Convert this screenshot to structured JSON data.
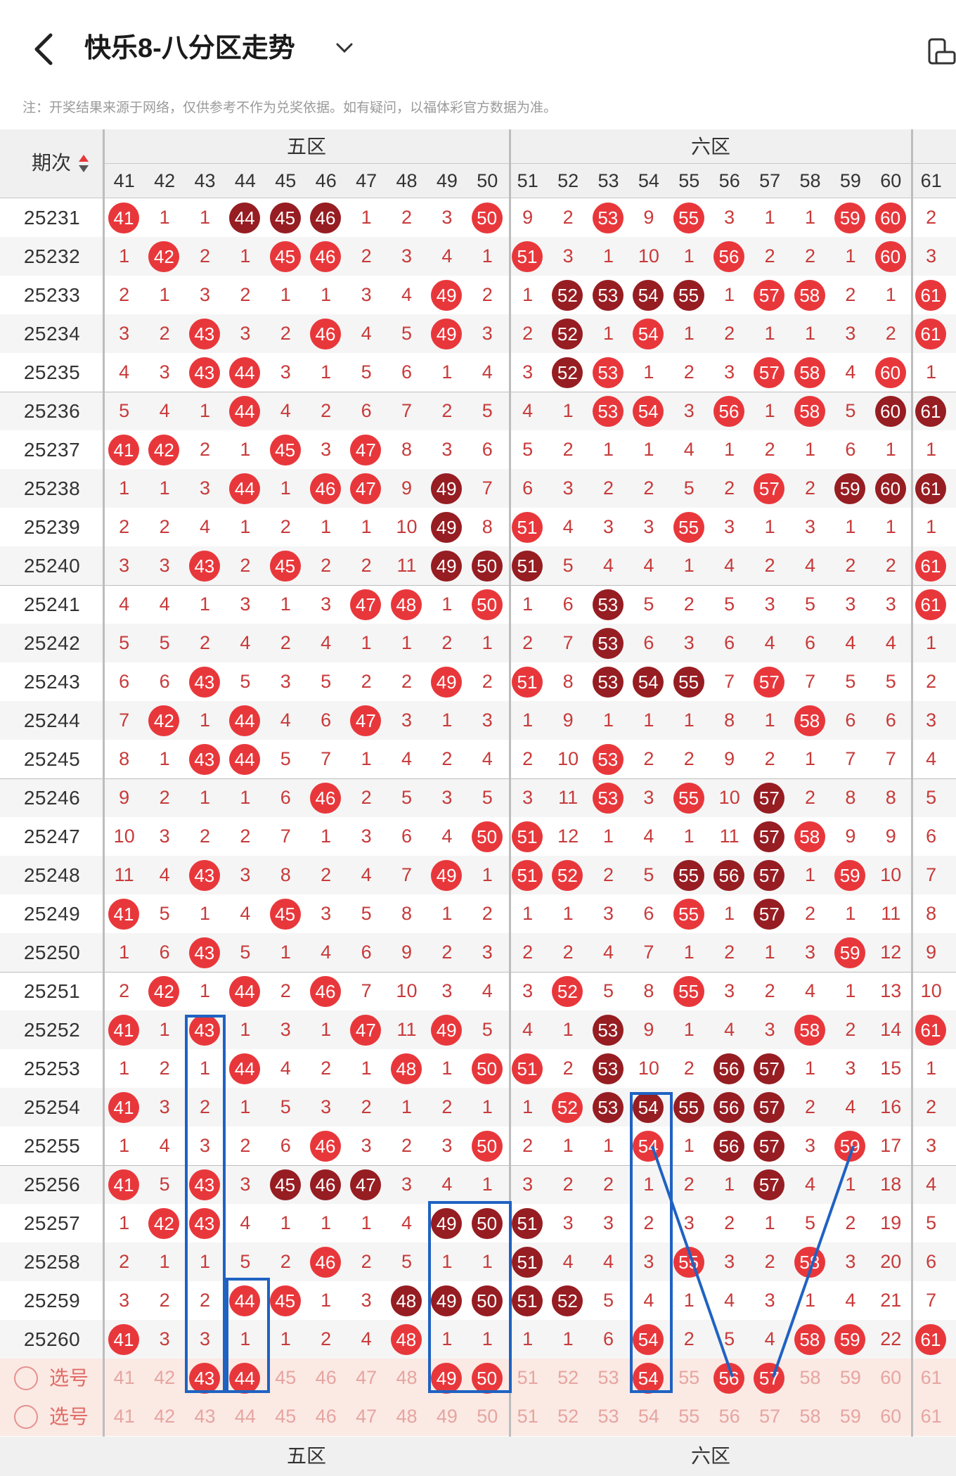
{
  "header": {
    "title": "快乐8-八分区走势",
    "back_icon": "back-arrow-icon",
    "dropdown_icon": "chevron-down-icon",
    "side_icon": "phone-rotate-icon"
  },
  "notice": "注：开奖结果来源于网络，仅供参考不作为兑奖依据。如有疑问，以福体彩官方数据为准。",
  "table": {
    "period_header": "期次",
    "zones": [
      "五区",
      "六区"
    ],
    "columns": [
      41,
      42,
      43,
      44,
      45,
      46,
      47,
      48,
      49,
      50,
      51,
      52,
      53,
      54,
      55,
      56,
      57,
      58,
      59,
      60,
      61
    ],
    "legend": {
      "hit_color": "#e8373b",
      "repeat_color": "#961d22",
      "miss_color": "#c83a3a"
    },
    "rows": [
      {
        "p": "25231",
        "c": [
          [
            41,
            1
          ],
          1,
          1,
          [
            44,
            2
          ],
          [
            45,
            2
          ],
          [
            46,
            2
          ],
          1,
          2,
          3,
          [
            50,
            1
          ],
          9,
          2,
          [
            53,
            1
          ],
          9,
          [
            55,
            1
          ],
          3,
          1,
          1,
          [
            59,
            1
          ],
          [
            60,
            1
          ],
          2
        ]
      },
      {
        "p": "25232",
        "c": [
          1,
          [
            42,
            1
          ],
          2,
          1,
          [
            45,
            1
          ],
          [
            46,
            1
          ],
          2,
          3,
          4,
          1,
          [
            51,
            1
          ],
          3,
          1,
          10,
          1,
          [
            56,
            1
          ],
          2,
          2,
          1,
          [
            60,
            1
          ],
          3
        ]
      },
      {
        "p": "25233",
        "c": [
          2,
          1,
          3,
          2,
          1,
          1,
          3,
          4,
          [
            49,
            1
          ],
          2,
          1,
          [
            52,
            2
          ],
          [
            53,
            2
          ],
          [
            54,
            2
          ],
          [
            55,
            2
          ],
          1,
          [
            57,
            1
          ],
          [
            58,
            1
          ],
          2,
          1,
          [
            61,
            1
          ]
        ]
      },
      {
        "p": "25234",
        "c": [
          3,
          2,
          [
            43,
            1
          ],
          3,
          2,
          [
            46,
            1
          ],
          4,
          5,
          [
            49,
            1
          ],
          3,
          2,
          [
            52,
            2
          ],
          1,
          [
            54,
            1
          ],
          1,
          2,
          1,
          1,
          3,
          2,
          [
            61,
            1
          ]
        ]
      },
      {
        "p": "25235",
        "c": [
          4,
          3,
          [
            43,
            1
          ],
          [
            44,
            1
          ],
          3,
          1,
          5,
          6,
          1,
          4,
          3,
          [
            52,
            2
          ],
          [
            53,
            1
          ],
          1,
          2,
          3,
          [
            57,
            1
          ],
          [
            58,
            1
          ],
          4,
          [
            60,
            1
          ],
          1
        ]
      },
      {
        "p": "25236",
        "c": [
          5,
          4,
          1,
          [
            44,
            1
          ],
          4,
          2,
          6,
          7,
          2,
          5,
          4,
          1,
          [
            53,
            1
          ],
          [
            54,
            1
          ],
          3,
          [
            56,
            1
          ],
          1,
          [
            58,
            1
          ],
          5,
          [
            60,
            2
          ],
          [
            61,
            2
          ]
        ]
      },
      {
        "p": "25237",
        "c": [
          [
            41,
            1
          ],
          [
            42,
            1
          ],
          2,
          1,
          [
            45,
            1
          ],
          3,
          [
            47,
            1
          ],
          8,
          3,
          6,
          5,
          2,
          1,
          1,
          4,
          1,
          2,
          1,
          6,
          1,
          1
        ]
      },
      {
        "p": "25238",
        "c": [
          1,
          1,
          3,
          [
            44,
            1
          ],
          1,
          [
            46,
            1
          ],
          [
            47,
            1
          ],
          9,
          [
            49,
            2
          ],
          7,
          6,
          3,
          2,
          2,
          5,
          2,
          [
            57,
            1
          ],
          2,
          [
            59,
            2
          ],
          [
            60,
            2
          ],
          [
            61,
            2
          ]
        ]
      },
      {
        "p": "25239",
        "c": [
          2,
          2,
          4,
          1,
          2,
          1,
          1,
          10,
          [
            49,
            2
          ],
          8,
          [
            51,
            1
          ],
          4,
          3,
          3,
          [
            55,
            1
          ],
          3,
          1,
          3,
          1,
          1,
          1
        ]
      },
      {
        "p": "25240",
        "c": [
          3,
          3,
          [
            43,
            1
          ],
          2,
          [
            45,
            1
          ],
          2,
          2,
          11,
          [
            49,
            2
          ],
          [
            50,
            2
          ],
          [
            51,
            2
          ],
          5,
          4,
          4,
          1,
          4,
          2,
          4,
          2,
          2,
          [
            61,
            1
          ]
        ]
      },
      {
        "p": "25241",
        "c": [
          4,
          4,
          1,
          3,
          1,
          3,
          [
            47,
            1
          ],
          [
            48,
            1
          ],
          1,
          [
            50,
            1
          ],
          1,
          6,
          [
            53,
            2
          ],
          5,
          2,
          5,
          3,
          5,
          3,
          3,
          [
            61,
            1
          ]
        ]
      },
      {
        "p": "25242",
        "c": [
          5,
          5,
          2,
          4,
          2,
          4,
          1,
          1,
          2,
          1,
          2,
          7,
          [
            53,
            2
          ],
          6,
          3,
          6,
          4,
          6,
          4,
          4,
          1
        ]
      },
      {
        "p": "25243",
        "c": [
          6,
          6,
          [
            43,
            1
          ],
          5,
          3,
          5,
          2,
          2,
          [
            49,
            1
          ],
          2,
          [
            51,
            1
          ],
          8,
          [
            53,
            2
          ],
          [
            54,
            2
          ],
          [
            55,
            2
          ],
          7,
          [
            57,
            1
          ],
          7,
          5,
          5,
          2
        ]
      },
      {
        "p": "25244",
        "c": [
          7,
          [
            42,
            1
          ],
          1,
          [
            44,
            1
          ],
          4,
          6,
          [
            47,
            1
          ],
          3,
          1,
          3,
          1,
          9,
          1,
          1,
          1,
          8,
          1,
          [
            58,
            1
          ],
          6,
          6,
          3
        ]
      },
      {
        "p": "25245",
        "c": [
          8,
          1,
          [
            43,
            1
          ],
          [
            44,
            1
          ],
          5,
          7,
          1,
          4,
          2,
          4,
          2,
          10,
          [
            53,
            1
          ],
          2,
          2,
          9,
          2,
          1,
          7,
          7,
          4
        ]
      },
      {
        "p": "25246",
        "c": [
          9,
          2,
          1,
          1,
          6,
          [
            46,
            1
          ],
          2,
          5,
          3,
          5,
          3,
          11,
          [
            53,
            1
          ],
          3,
          [
            55,
            1
          ],
          10,
          [
            57,
            2
          ],
          2,
          8,
          8,
          5
        ]
      },
      {
        "p": "25247",
        "c": [
          10,
          3,
          2,
          2,
          7,
          1,
          3,
          6,
          4,
          [
            50,
            1
          ],
          [
            51,
            1
          ],
          12,
          1,
          4,
          1,
          11,
          [
            57,
            2
          ],
          [
            58,
            1
          ],
          9,
          9,
          6
        ]
      },
      {
        "p": "25248",
        "c": [
          11,
          4,
          [
            43,
            1
          ],
          3,
          8,
          2,
          4,
          7,
          [
            49,
            1
          ],
          1,
          [
            51,
            1
          ],
          [
            52,
            1
          ],
          2,
          5,
          [
            55,
            2
          ],
          [
            56,
            2
          ],
          [
            57,
            2
          ],
          1,
          [
            59,
            1
          ],
          10,
          7
        ]
      },
      {
        "p": "25249",
        "c": [
          [
            41,
            1
          ],
          5,
          1,
          4,
          [
            45,
            1
          ],
          3,
          5,
          8,
          1,
          2,
          1,
          1,
          3,
          6,
          [
            55,
            1
          ],
          1,
          [
            57,
            2
          ],
          2,
          1,
          11,
          8
        ]
      },
      {
        "p": "25250",
        "c": [
          1,
          6,
          [
            43,
            1
          ],
          5,
          1,
          4,
          6,
          9,
          2,
          3,
          2,
          2,
          4,
          7,
          1,
          2,
          1,
          3,
          [
            59,
            1
          ],
          12,
          9
        ]
      },
      {
        "p": "25251",
        "c": [
          2,
          [
            42,
            1
          ],
          1,
          [
            44,
            1
          ],
          2,
          [
            46,
            1
          ],
          7,
          10,
          3,
          4,
          3,
          [
            52,
            1
          ],
          5,
          8,
          [
            55,
            1
          ],
          3,
          2,
          4,
          1,
          13,
          10
        ]
      },
      {
        "p": "25252",
        "c": [
          [
            41,
            1
          ],
          1,
          [
            43,
            1
          ],
          1,
          3,
          1,
          [
            47,
            1
          ],
          11,
          [
            49,
            1
          ],
          5,
          4,
          1,
          [
            53,
            2
          ],
          9,
          1,
          4,
          3,
          [
            58,
            1
          ],
          2,
          14,
          [
            61,
            1
          ]
        ]
      },
      {
        "p": "25253",
        "c": [
          1,
          2,
          1,
          [
            44,
            1
          ],
          4,
          2,
          1,
          [
            48,
            1
          ],
          1,
          [
            50,
            1
          ],
          [
            51,
            1
          ],
          2,
          [
            53,
            2
          ],
          10,
          2,
          [
            56,
            2
          ],
          [
            57,
            2
          ],
          1,
          3,
          15,
          1
        ]
      },
      {
        "p": "25254",
        "c": [
          [
            41,
            1
          ],
          3,
          2,
          1,
          5,
          3,
          2,
          1,
          2,
          1,
          1,
          [
            52,
            1
          ],
          [
            53,
            2
          ],
          [
            54,
            2
          ],
          [
            55,
            2
          ],
          [
            56,
            2
          ],
          [
            57,
            2
          ],
          2,
          4,
          16,
          2
        ]
      },
      {
        "p": "25255",
        "c": [
          1,
          4,
          3,
          2,
          6,
          [
            46,
            1
          ],
          3,
          2,
          3,
          [
            50,
            1
          ],
          2,
          1,
          1,
          [
            54,
            1
          ],
          1,
          [
            56,
            2
          ],
          [
            57,
            2
          ],
          3,
          [
            59,
            1
          ],
          17,
          3
        ]
      },
      {
        "p": "25256",
        "c": [
          [
            41,
            1
          ],
          5,
          [
            43,
            1
          ],
          3,
          [
            45,
            2
          ],
          [
            46,
            2
          ],
          [
            47,
            2
          ],
          3,
          4,
          1,
          3,
          2,
          2,
          1,
          2,
          1,
          [
            57,
            2
          ],
          4,
          1,
          18,
          4
        ]
      },
      {
        "p": "25257",
        "c": [
          1,
          [
            42,
            1
          ],
          [
            43,
            1
          ],
          4,
          1,
          1,
          1,
          4,
          [
            49,
            2
          ],
          [
            50,
            2
          ],
          [
            51,
            2
          ],
          3,
          3,
          2,
          3,
          2,
          1,
          5,
          2,
          19,
          5
        ]
      },
      {
        "p": "25258",
        "c": [
          2,
          1,
          1,
          5,
          2,
          [
            46,
            1
          ],
          2,
          5,
          1,
          1,
          [
            51,
            2
          ],
          4,
          4,
          3,
          [
            55,
            1
          ],
          3,
          2,
          [
            58,
            1
          ],
          3,
          20,
          6
        ]
      },
      {
        "p": "25259",
        "c": [
          3,
          2,
          2,
          [
            44,
            1
          ],
          [
            45,
            1
          ],
          1,
          3,
          [
            48,
            2
          ],
          [
            49,
            2
          ],
          [
            50,
            2
          ],
          [
            51,
            2
          ],
          [
            52,
            2
          ],
          5,
          4,
          1,
          4,
          3,
          1,
          4,
          21,
          7
        ]
      },
      {
        "p": "25260",
        "c": [
          [
            41,
            1
          ],
          3,
          3,
          1,
          1,
          2,
          4,
          [
            48,
            1
          ],
          1,
          1,
          1,
          1,
          6,
          [
            54,
            1
          ],
          2,
          5,
          4,
          [
            58,
            1
          ],
          [
            59,
            1
          ],
          22,
          [
            61,
            1
          ]
        ]
      }
    ],
    "selection_rows": [
      {
        "label": "选号",
        "selected": [
          43,
          44,
          49,
          50,
          54,
          56,
          57
        ]
      },
      {
        "label": "选号",
        "selected": []
      }
    ]
  }
}
